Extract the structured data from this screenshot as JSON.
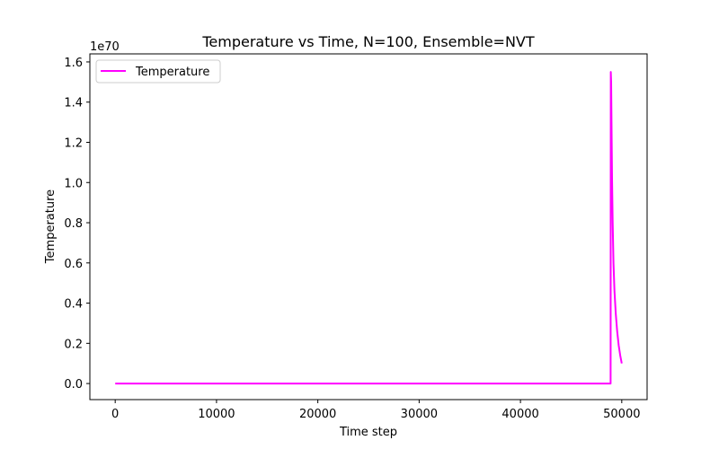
{
  "chart_data": {
    "type": "line",
    "title": "Temperature vs Time, N=100, Ensemble=NVT",
    "xlabel": "Time step",
    "ylabel": "Temperature",
    "y_scale_label": "1e70",
    "xlim": [
      -2500,
      52500
    ],
    "ylim": [
      -0.08,
      1.64
    ],
    "x_ticks": [
      0,
      10000,
      20000,
      30000,
      40000,
      50000
    ],
    "x_tick_labels": [
      "0",
      "10000",
      "20000",
      "30000",
      "40000",
      "50000"
    ],
    "y_ticks": [
      0.0,
      0.2,
      0.4,
      0.6,
      0.8,
      1.0,
      1.2,
      1.4,
      1.6
    ],
    "y_tick_labels": [
      "0.0",
      "0.2",
      "0.4",
      "0.6",
      "0.8",
      "1.0",
      "1.2",
      "1.4",
      "1.6"
    ],
    "legend_position": "top-left",
    "grid": false,
    "series": [
      {
        "name": "Temperature",
        "color": "#ff00ff",
        "x": [
          0,
          48800,
          48900,
          48920,
          48950,
          48990,
          49040,
          49100,
          49180,
          49280,
          49400,
          49550,
          49700,
          49850,
          50000
        ],
        "y": [
          0.0,
          0.0,
          0.0,
          1.55,
          1.5,
          1.3,
          1.02,
          0.8,
          0.6,
          0.46,
          0.35,
          0.26,
          0.19,
          0.14,
          0.1
        ]
      }
    ]
  }
}
